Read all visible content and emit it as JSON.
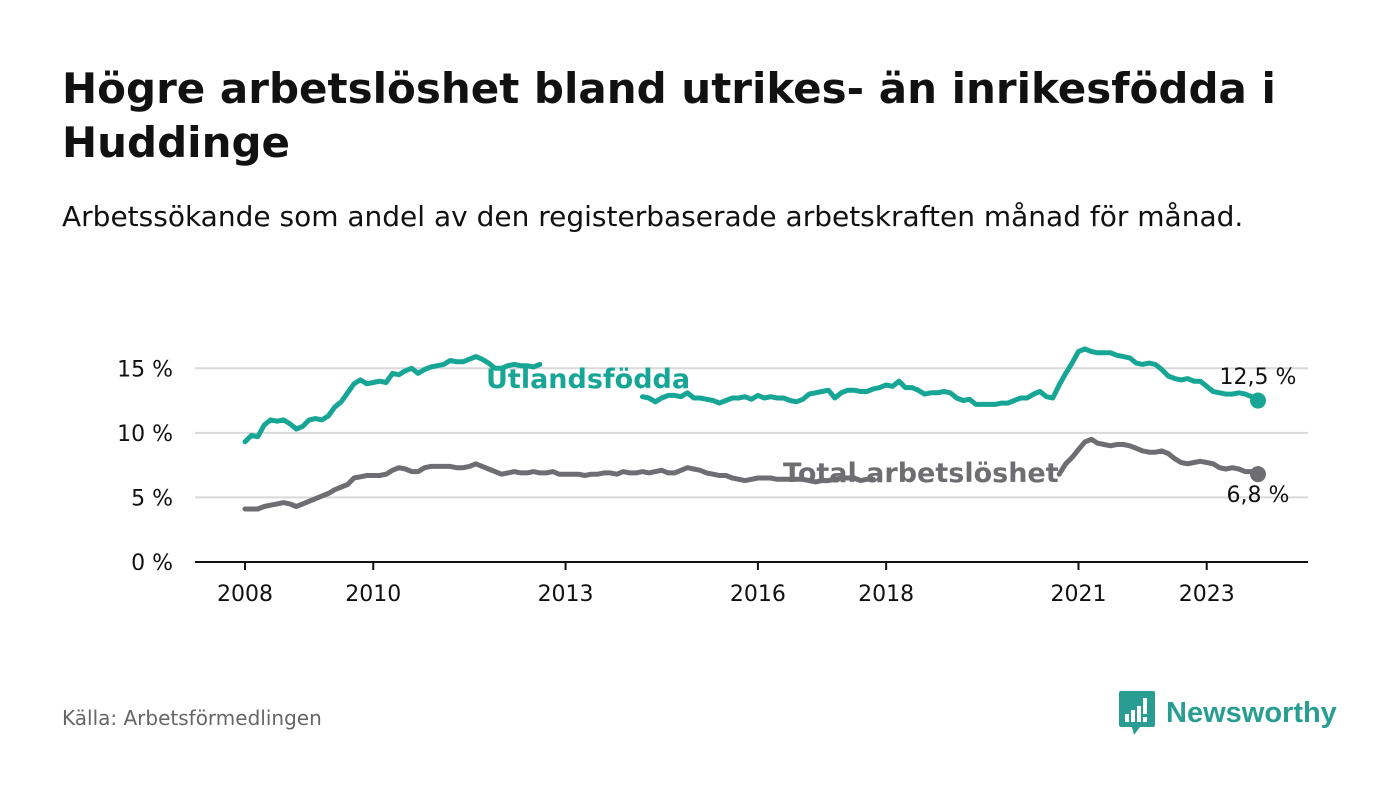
{
  "header": {
    "title": "Högre arbetslöshet bland utrikes- än inrikesfödda i Huddinge",
    "subtitle": "Arbetssökande som andel av den registerbaserade arbetskraften månad för månad."
  },
  "footer": {
    "source": "Källa: Arbetsförmedlingen",
    "brand": "Newsworthy",
    "brand_icon": "newsworthy-logo-icon"
  },
  "colors": {
    "utlandsfodda": "#17a596",
    "total": "#6e6e72",
    "grid": "#d9d9d9",
    "axis": "#111111",
    "brand": "#2a9d92"
  },
  "chart_data": {
    "type": "line",
    "title": "Högre arbetslöshet bland utrikes- än inrikesfödda i Huddinge",
    "xlabel": "",
    "ylabel": "",
    "x_unit": "year",
    "xlim": [
      2007.4,
      2023.8
    ],
    "ylim": [
      0,
      16.8
    ],
    "x_ticks": [
      {
        "value": 2008,
        "label": "2008"
      },
      {
        "value": 2010,
        "label": "2010"
      },
      {
        "value": 2013,
        "label": "2013"
      },
      {
        "value": 2016,
        "label": "2016"
      },
      {
        "value": 2018,
        "label": "2018"
      },
      {
        "value": 2021,
        "label": "2021"
      },
      {
        "value": 2023,
        "label": "2023"
      }
    ],
    "y_ticks": [
      {
        "value": 0,
        "label": "0 %"
      },
      {
        "value": 5,
        "label": "5 %"
      },
      {
        "value": 10,
        "label": "10 %"
      },
      {
        "value": 15,
        "label": "15 %"
      }
    ],
    "grid": true,
    "series": [
      {
        "name": "Utlandsfödda",
        "color": "#17a596",
        "end_label": "12,5 %",
        "label_at": 2012.0,
        "points": [
          [
            2008.0,
            9.3
          ],
          [
            2008.1,
            9.8
          ],
          [
            2008.2,
            9.7
          ],
          [
            2008.3,
            10.6
          ],
          [
            2008.4,
            11.0
          ],
          [
            2008.5,
            10.9
          ],
          [
            2008.6,
            11.0
          ],
          [
            2008.7,
            10.7
          ],
          [
            2008.8,
            10.3
          ],
          [
            2008.9,
            10.5
          ],
          [
            2009.0,
            11.0
          ],
          [
            2009.1,
            11.1
          ],
          [
            2009.2,
            11.0
          ],
          [
            2009.3,
            11.3
          ],
          [
            2009.4,
            12.0
          ],
          [
            2009.5,
            12.4
          ],
          [
            2009.6,
            13.1
          ],
          [
            2009.7,
            13.8
          ],
          [
            2009.8,
            14.1
          ],
          [
            2009.9,
            13.8
          ],
          [
            2010.0,
            13.9
          ],
          [
            2010.1,
            14.0
          ],
          [
            2010.2,
            13.9
          ],
          [
            2010.3,
            14.6
          ],
          [
            2010.4,
            14.5
          ],
          [
            2010.5,
            14.8
          ],
          [
            2010.6,
            15.0
          ],
          [
            2010.7,
            14.6
          ],
          [
            2010.8,
            14.9
          ],
          [
            2010.9,
            15.1
          ],
          [
            2011.0,
            15.2
          ],
          [
            2011.1,
            15.3
          ],
          [
            2011.2,
            15.6
          ],
          [
            2011.3,
            15.5
          ],
          [
            2011.4,
            15.5
          ],
          [
            2011.5,
            15.7
          ],
          [
            2011.6,
            15.9
          ],
          [
            2011.7,
            15.7
          ],
          [
            2011.8,
            15.4
          ],
          [
            2011.9,
            15.0
          ],
          [
            2012.0,
            15.0
          ],
          [
            2012.1,
            15.2
          ],
          [
            2012.2,
            15.3
          ],
          [
            2012.3,
            15.2
          ],
          [
            2012.4,
            15.2
          ],
          [
            2012.5,
            15.1
          ],
          [
            2012.6,
            15.3
          ],
          [
            2014.2,
            12.8
          ],
          [
            2014.3,
            12.7
          ],
          [
            2014.4,
            12.4
          ],
          [
            2014.5,
            12.7
          ],
          [
            2014.6,
            12.9
          ],
          [
            2014.7,
            12.9
          ],
          [
            2014.8,
            12.8
          ],
          [
            2014.9,
            13.1
          ],
          [
            2015.0,
            12.7
          ],
          [
            2015.1,
            12.7
          ],
          [
            2015.2,
            12.6
          ],
          [
            2015.3,
            12.5
          ],
          [
            2015.4,
            12.3
          ],
          [
            2015.5,
            12.5
          ],
          [
            2015.6,
            12.7
          ],
          [
            2015.7,
            12.7
          ],
          [
            2015.8,
            12.8
          ],
          [
            2015.9,
            12.6
          ],
          [
            2016.0,
            12.9
          ],
          [
            2016.1,
            12.7
          ],
          [
            2016.2,
            12.8
          ],
          [
            2016.3,
            12.7
          ],
          [
            2016.4,
            12.7
          ],
          [
            2016.5,
            12.5
          ],
          [
            2016.6,
            12.4
          ],
          [
            2016.7,
            12.6
          ],
          [
            2016.8,
            13.0
          ],
          [
            2016.9,
            13.1
          ],
          [
            2017.0,
            13.2
          ],
          [
            2017.1,
            13.3
          ],
          [
            2017.2,
            12.7
          ],
          [
            2017.3,
            13.1
          ],
          [
            2017.4,
            13.3
          ],
          [
            2017.5,
            13.3
          ],
          [
            2017.6,
            13.2
          ],
          [
            2017.7,
            13.2
          ],
          [
            2017.8,
            13.4
          ],
          [
            2017.9,
            13.5
          ],
          [
            2018.0,
            13.7
          ],
          [
            2018.1,
            13.6
          ],
          [
            2018.2,
            14.0
          ],
          [
            2018.3,
            13.5
          ],
          [
            2018.4,
            13.5
          ],
          [
            2018.5,
            13.3
          ],
          [
            2018.6,
            13.0
          ],
          [
            2018.7,
            13.1
          ],
          [
            2018.8,
            13.1
          ],
          [
            2018.9,
            13.2
          ],
          [
            2019.0,
            13.1
          ],
          [
            2019.1,
            12.7
          ],
          [
            2019.2,
            12.5
          ],
          [
            2019.3,
            12.6
          ],
          [
            2019.4,
            12.2
          ],
          [
            2019.5,
            12.2
          ],
          [
            2019.6,
            12.2
          ],
          [
            2019.7,
            12.2
          ],
          [
            2019.8,
            12.3
          ],
          [
            2019.9,
            12.3
          ],
          [
            2020.0,
            12.5
          ],
          [
            2020.1,
            12.7
          ],
          [
            2020.2,
            12.7
          ],
          [
            2020.3,
            13.0
          ],
          [
            2020.4,
            13.2
          ],
          [
            2020.5,
            12.8
          ],
          [
            2020.6,
            12.7
          ],
          [
            2020.7,
            13.7
          ],
          [
            2020.8,
            14.6
          ],
          [
            2020.9,
            15.4
          ],
          [
            2021.0,
            16.3
          ],
          [
            2021.1,
            16.5
          ],
          [
            2021.2,
            16.3
          ],
          [
            2021.3,
            16.2
          ],
          [
            2021.4,
            16.2
          ],
          [
            2021.5,
            16.2
          ],
          [
            2021.6,
            16.0
          ],
          [
            2021.7,
            15.9
          ],
          [
            2021.8,
            15.8
          ],
          [
            2021.9,
            15.4
          ],
          [
            2022.0,
            15.3
          ],
          [
            2022.1,
            15.4
          ],
          [
            2022.2,
            15.3
          ],
          [
            2022.3,
            14.9
          ],
          [
            2022.4,
            14.4
          ],
          [
            2022.5,
            14.2
          ],
          [
            2022.6,
            14.1
          ],
          [
            2022.7,
            14.2
          ],
          [
            2022.8,
            14.0
          ],
          [
            2022.9,
            14.0
          ],
          [
            2023.0,
            13.6
          ],
          [
            2023.1,
            13.2
          ],
          [
            2023.2,
            13.1
          ],
          [
            2023.3,
            13.0
          ],
          [
            2023.4,
            13.0
          ],
          [
            2023.5,
            13.1
          ],
          [
            2023.6,
            13.0
          ],
          [
            2023.7,
            12.8
          ],
          [
            2023.8,
            12.5
          ]
        ]
      },
      {
        "name": "Total arbetslöshet",
        "color": "#6e6e72",
        "end_label": "6,8 %",
        "label_at": 2018.0,
        "points": [
          [
            2008.0,
            4.1
          ],
          [
            2008.1,
            4.1
          ],
          [
            2008.2,
            4.1
          ],
          [
            2008.3,
            4.3
          ],
          [
            2008.4,
            4.4
          ],
          [
            2008.5,
            4.5
          ],
          [
            2008.6,
            4.6
          ],
          [
            2008.7,
            4.5
          ],
          [
            2008.8,
            4.3
          ],
          [
            2008.9,
            4.5
          ],
          [
            2009.0,
            4.7
          ],
          [
            2009.1,
            4.9
          ],
          [
            2009.2,
            5.1
          ],
          [
            2009.3,
            5.3
          ],
          [
            2009.4,
            5.6
          ],
          [
            2009.5,
            5.8
          ],
          [
            2009.6,
            6.0
          ],
          [
            2009.7,
            6.5
          ],
          [
            2009.8,
            6.6
          ],
          [
            2009.9,
            6.7
          ],
          [
            2010.0,
            6.7
          ],
          [
            2010.1,
            6.7
          ],
          [
            2010.2,
            6.8
          ],
          [
            2010.3,
            7.1
          ],
          [
            2010.4,
            7.3
          ],
          [
            2010.5,
            7.2
          ],
          [
            2010.6,
            7.0
          ],
          [
            2010.7,
            7.0
          ],
          [
            2010.8,
            7.3
          ],
          [
            2010.9,
            7.4
          ],
          [
            2011.0,
            7.4
          ],
          [
            2011.1,
            7.4
          ],
          [
            2011.2,
            7.4
          ],
          [
            2011.3,
            7.3
          ],
          [
            2011.4,
            7.3
          ],
          [
            2011.5,
            7.4
          ],
          [
            2011.6,
            7.6
          ],
          [
            2011.7,
            7.4
          ],
          [
            2011.8,
            7.2
          ],
          [
            2011.9,
            7.0
          ],
          [
            2012.0,
            6.8
          ],
          [
            2012.1,
            6.9
          ],
          [
            2012.2,
            7.0
          ],
          [
            2012.3,
            6.9
          ],
          [
            2012.4,
            6.9
          ],
          [
            2012.5,
            7.0
          ],
          [
            2012.6,
            6.9
          ],
          [
            2012.7,
            6.9
          ],
          [
            2012.8,
            7.0
          ],
          [
            2012.9,
            6.8
          ],
          [
            2013.0,
            6.8
          ],
          [
            2013.1,
            6.8
          ],
          [
            2013.2,
            6.8
          ],
          [
            2013.3,
            6.7
          ],
          [
            2013.4,
            6.8
          ],
          [
            2013.5,
            6.8
          ],
          [
            2013.6,
            6.9
          ],
          [
            2013.7,
            6.9
          ],
          [
            2013.8,
            6.8
          ],
          [
            2013.9,
            7.0
          ],
          [
            2014.0,
            6.9
          ],
          [
            2014.1,
            6.9
          ],
          [
            2014.2,
            7.0
          ],
          [
            2014.3,
            6.9
          ],
          [
            2014.4,
            7.0
          ],
          [
            2014.5,
            7.1
          ],
          [
            2014.6,
            6.9
          ],
          [
            2014.7,
            6.9
          ],
          [
            2014.8,
            7.1
          ],
          [
            2014.9,
            7.3
          ],
          [
            2015.0,
            7.2
          ],
          [
            2015.1,
            7.1
          ],
          [
            2015.2,
            6.9
          ],
          [
            2015.3,
            6.8
          ],
          [
            2015.4,
            6.7
          ],
          [
            2015.5,
            6.7
          ],
          [
            2015.6,
            6.5
          ],
          [
            2015.7,
            6.4
          ],
          [
            2015.8,
            6.3
          ],
          [
            2015.9,
            6.4
          ],
          [
            2016.0,
            6.5
          ],
          [
            2016.1,
            6.5
          ],
          [
            2016.2,
            6.5
          ],
          [
            2016.3,
            6.4
          ],
          [
            2016.4,
            6.4
          ],
          [
            2016.5,
            6.4
          ],
          [
            2016.6,
            6.4
          ],
          [
            2016.7,
            6.4
          ],
          [
            2016.8,
            6.3
          ],
          [
            2016.9,
            6.2
          ],
          [
            2017.0,
            6.3
          ],
          [
            2017.1,
            6.3
          ],
          [
            2017.2,
            6.4
          ],
          [
            2017.3,
            6.5
          ],
          [
            2017.4,
            6.5
          ],
          [
            2017.5,
            6.5
          ],
          [
            2017.6,
            6.3
          ],
          [
            2017.7,
            6.4
          ],
          [
            2017.8,
            6.4
          ],
          [
            2020.7,
            6.8
          ],
          [
            2020.8,
            7.6
          ],
          [
            2020.9,
            8.1
          ],
          [
            2021.0,
            8.7
          ],
          [
            2021.1,
            9.3
          ],
          [
            2021.2,
            9.5
          ],
          [
            2021.3,
            9.2
          ],
          [
            2021.4,
            9.1
          ],
          [
            2021.5,
            9.0
          ],
          [
            2021.6,
            9.1
          ],
          [
            2021.7,
            9.1
          ],
          [
            2021.8,
            9.0
          ],
          [
            2021.9,
            8.8
          ],
          [
            2022.0,
            8.6
          ],
          [
            2022.1,
            8.5
          ],
          [
            2022.2,
            8.5
          ],
          [
            2022.3,
            8.6
          ],
          [
            2022.4,
            8.4
          ],
          [
            2022.5,
            8.0
          ],
          [
            2022.6,
            7.7
          ],
          [
            2022.7,
            7.6
          ],
          [
            2022.8,
            7.7
          ],
          [
            2022.9,
            7.8
          ],
          [
            2023.0,
            7.7
          ],
          [
            2023.1,
            7.6
          ],
          [
            2023.2,
            7.3
          ],
          [
            2023.3,
            7.2
          ],
          [
            2023.4,
            7.3
          ],
          [
            2023.5,
            7.2
          ],
          [
            2023.6,
            7.0
          ],
          [
            2023.7,
            7.0
          ],
          [
            2023.8,
            6.8
          ]
        ]
      }
    ]
  }
}
